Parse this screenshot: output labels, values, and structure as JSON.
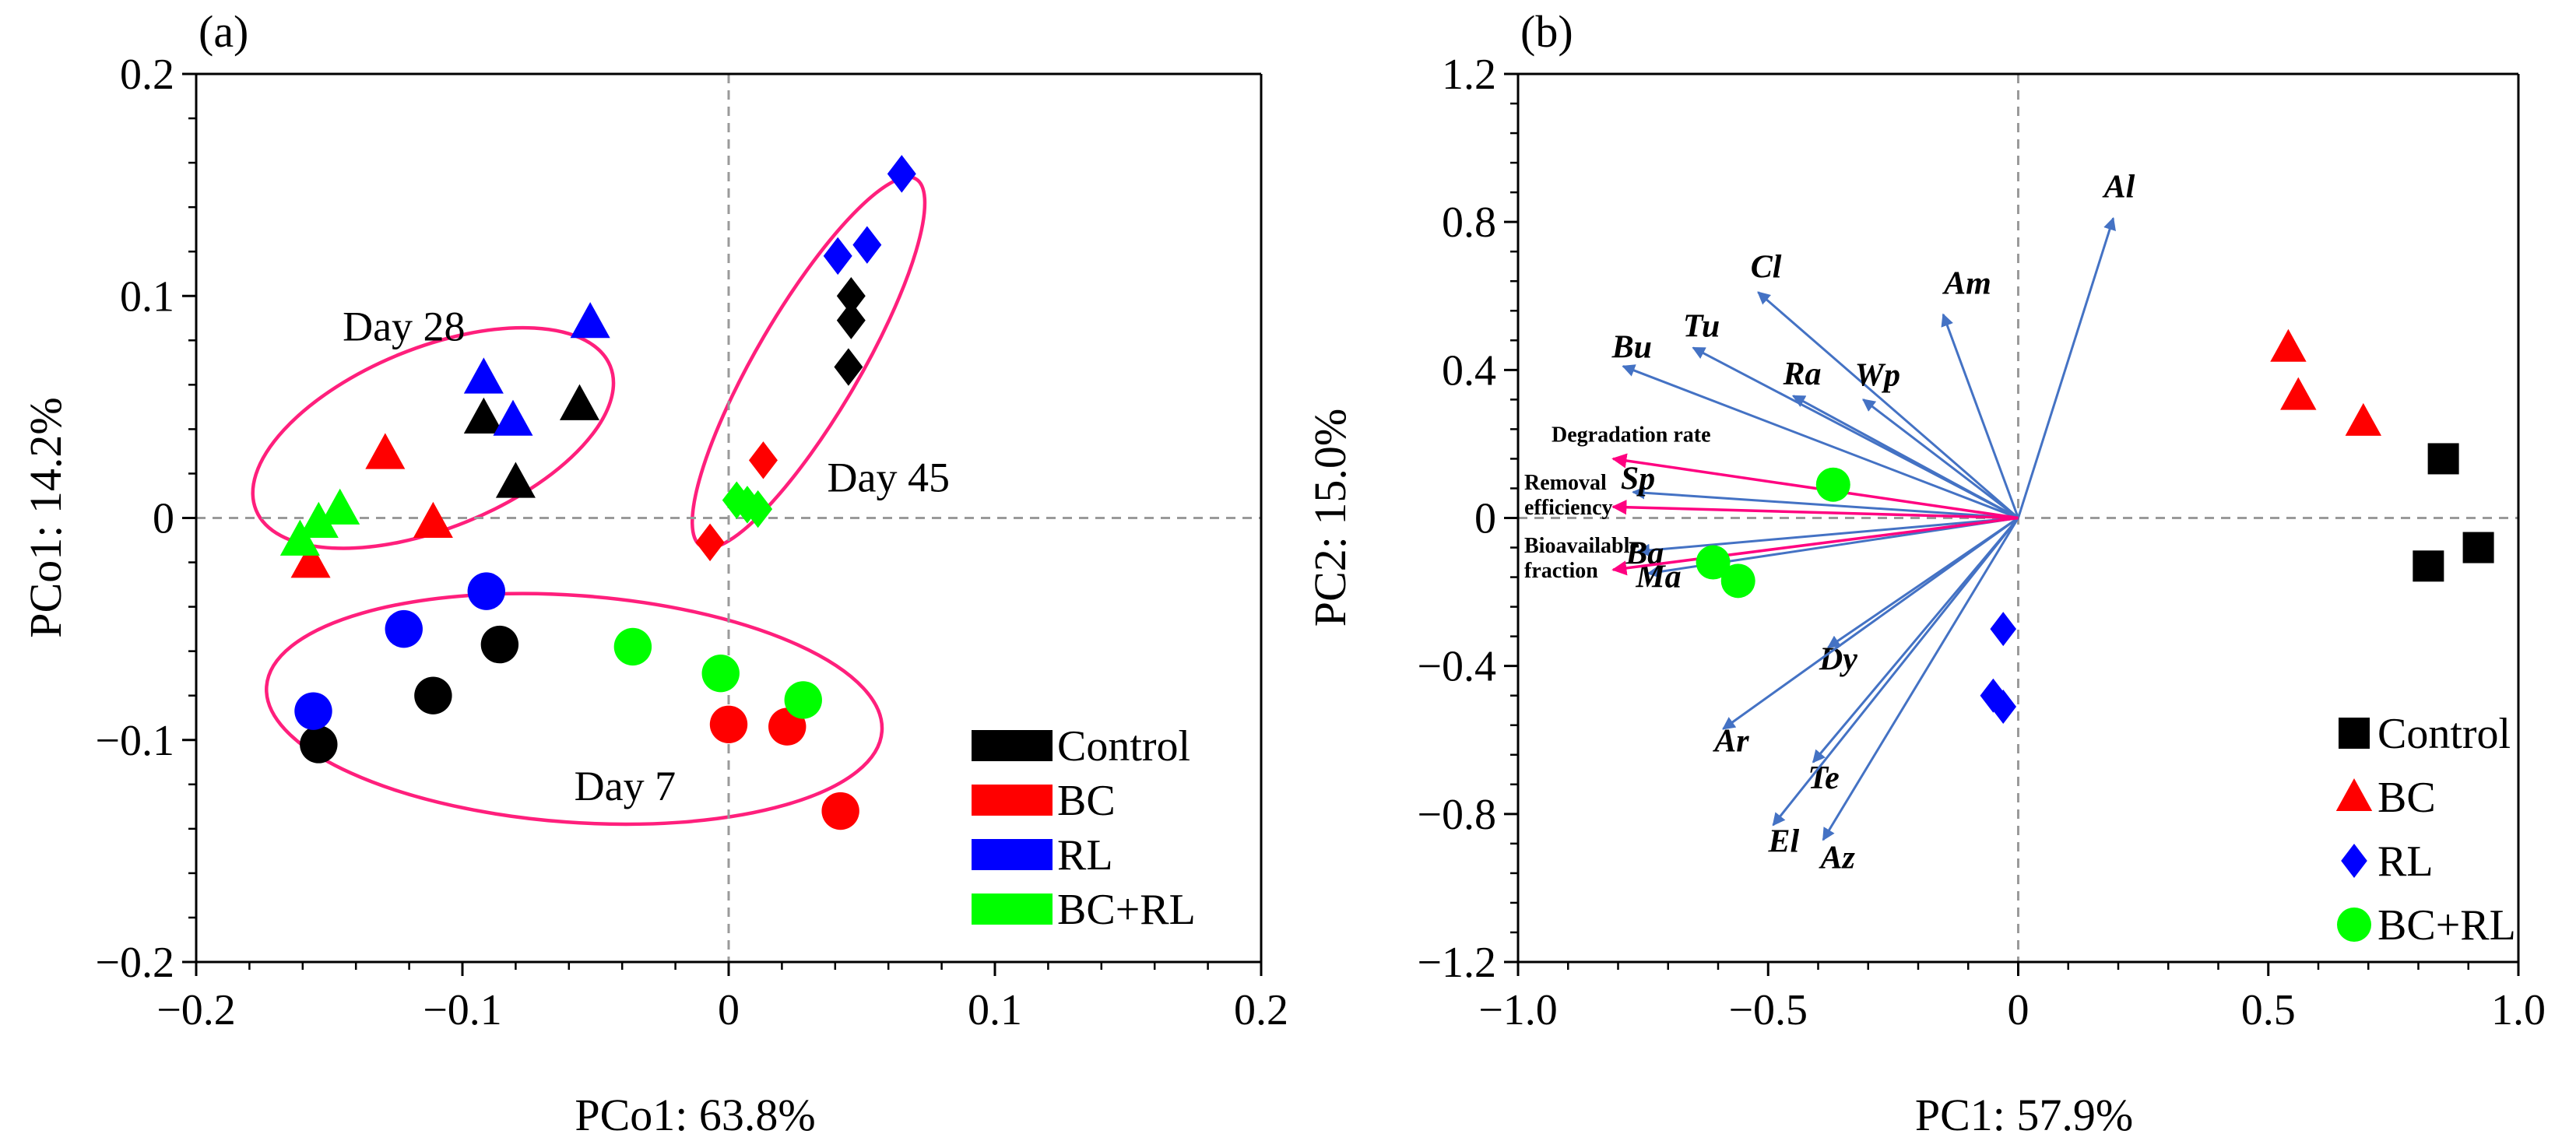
{
  "chart_data": [
    {
      "type": "scatter",
      "panel_label": "(a)",
      "xlabel": "PCo1: 63.8%",
      "ylabel": "PCo1: 14.2%",
      "xlim": [
        -0.2,
        0.2
      ],
      "ylim": [
        -0.2,
        0.2
      ],
      "xticks": [
        -0.2,
        -0.1,
        0,
        0.1,
        0.2
      ],
      "yticks": [
        -0.2,
        -0.1,
        0,
        0.1,
        0.2
      ],
      "xtick_labels": [
        "−0.2",
        "−0.1",
        "0",
        "0.1",
        "0.2"
      ],
      "ytick_labels": [
        "−0.2",
        "−0.1",
        "0",
        "0.1",
        "0.2"
      ],
      "reference_lines": "dashed lines at x=0 and y=0",
      "legend": {
        "position": "bottom-right",
        "entries": [
          "Control",
          "BC",
          "RL",
          "BC+RL"
        ]
      },
      "markers_by_day": {
        "Day 7": "circle",
        "Day 28": "triangle",
        "Day 45": "diamond"
      },
      "series": [
        {
          "name": "Control",
          "color": "#000000",
          "points": [
            {
              "day": "Day 7",
              "x": -0.154,
              "y": -0.102
            },
            {
              "day": "Day 7",
              "x": -0.111,
              "y": -0.08
            },
            {
              "day": "Day 7",
              "x": -0.086,
              "y": -0.057
            },
            {
              "day": "Day 28",
              "x": -0.092,
              "y": 0.045
            },
            {
              "day": "Day 28",
              "x": -0.08,
              "y": 0.016
            },
            {
              "day": "Day 28",
              "x": -0.056,
              "y": 0.051
            },
            {
              "day": "Day 45",
              "x": 0.046,
              "y": 0.1
            },
            {
              "day": "Day 45",
              "x": 0.046,
              "y": 0.089
            },
            {
              "day": "Day 45",
              "x": 0.045,
              "y": 0.068
            }
          ]
        },
        {
          "name": "BC",
          "color": "#ff0000",
          "points": [
            {
              "day": "Day 7",
              "x": 0.0,
              "y": -0.093
            },
            {
              "day": "Day 7",
              "x": 0.022,
              "y": -0.094
            },
            {
              "day": "Day 7",
              "x": 0.042,
              "y": -0.132
            },
            {
              "day": "Day 28",
              "x": -0.129,
              "y": 0.029
            },
            {
              "day": "Day 28",
              "x": -0.111,
              "y": -0.002
            },
            {
              "day": "Day 28",
              "x": -0.157,
              "y": -0.02
            },
            {
              "day": "Day 45",
              "x": 0.013,
              "y": 0.026
            },
            {
              "day": "Day 45",
              "x": -0.007,
              "y": -0.011
            }
          ]
        },
        {
          "name": "RL",
          "color": "#0000ff",
          "points": [
            {
              "day": "Day 7",
              "x": -0.156,
              "y": -0.087
            },
            {
              "day": "Day 7",
              "x": -0.122,
              "y": -0.05
            },
            {
              "day": "Day 7",
              "x": -0.091,
              "y": -0.033
            },
            {
              "day": "Day 28",
              "x": -0.092,
              "y": 0.063
            },
            {
              "day": "Day 28",
              "x": -0.081,
              "y": 0.044
            },
            {
              "day": "Day 28",
              "x": -0.052,
              "y": 0.088
            },
            {
              "day": "Day 45",
              "x": 0.041,
              "y": 0.118
            },
            {
              "day": "Day 45",
              "x": 0.052,
              "y": 0.123
            },
            {
              "day": "Day 45",
              "x": 0.065,
              "y": 0.155
            }
          ]
        },
        {
          "name": "BC+RL",
          "color": "#00ff00",
          "points": [
            {
              "day": "Day 7",
              "x": -0.036,
              "y": -0.058
            },
            {
              "day": "Day 7",
              "x": -0.003,
              "y": -0.07
            },
            {
              "day": "Day 7",
              "x": 0.028,
              "y": -0.082
            },
            {
              "day": "Day 28",
              "x": -0.161,
              "y": -0.01
            },
            {
              "day": "Day 28",
              "x": -0.154,
              "y": -0.002
            },
            {
              "day": "Day 28",
              "x": -0.146,
              "y": 0.004
            },
            {
              "day": "Day 45",
              "x": 0.003,
              "y": 0.008
            },
            {
              "day": "Day 45",
              "x": 0.007,
              "y": 0.006
            },
            {
              "day": "Day 45",
              "x": 0.011,
              "y": 0.004
            }
          ]
        }
      ],
      "group_annotations": [
        {
          "label": "Day 28",
          "label_at": [
            -0.145,
            0.08
          ],
          "ellipse": {
            "cx": -0.111,
            "cy": 0.036,
            "rx": 0.074,
            "ry": 0.039,
            "angle_deg": 26
          }
        },
        {
          "label": "Day 45",
          "label_at": [
            0.037,
            0.012
          ],
          "ellipse": {
            "cx": 0.03,
            "cy": 0.07,
            "rx": 0.092,
            "ry": 0.02,
            "angle_deg": 64
          }
        },
        {
          "label": "Day 7",
          "label_at": [
            -0.058,
            -0.127
          ],
          "ellipse": {
            "cx": -0.058,
            "cy": -0.086,
            "rx": 0.116,
            "ry": 0.051,
            "angle_deg": -5
          }
        }
      ]
    },
    {
      "type": "biplot",
      "panel_label": "(b)",
      "xlabel": "PC1: 57.9%",
      "ylabel": "PC2: 15.0%",
      "xlim": [
        -1.0,
        1.0
      ],
      "ylim": [
        -1.2,
        1.2
      ],
      "xticks": [
        -1.0,
        -0.5,
        0,
        0.5,
        1.0
      ],
      "yticks": [
        -1.2,
        -0.8,
        -0.4,
        0,
        0.4,
        0.8,
        1.2
      ],
      "xtick_labels": [
        "−1.0",
        "−0.5",
        "0",
        "0.5",
        "1.0"
      ],
      "ytick_labels": [
        "−1.2",
        "−0.8",
        "−0.4",
        "0",
        "0.4",
        "0.8",
        "1.2"
      ],
      "reference_lines": "dashed lines at x=0 and y=0",
      "legend": {
        "position": "bottom-right",
        "entries": [
          "Control",
          "BC",
          "RL",
          "BC+RL"
        ]
      },
      "series": [
        {
          "name": "Control",
          "color": "#000000",
          "marker": "square",
          "points": [
            {
              "x": 0.85,
              "y": 0.16
            },
            {
              "x": 0.82,
              "y": -0.13
            },
            {
              "x": 0.92,
              "y": -0.08
            }
          ]
        },
        {
          "name": "BC",
          "color": "#ff0000",
          "marker": "triangle",
          "points": [
            {
              "x": 0.54,
              "y": 0.46
            },
            {
              "x": 0.56,
              "y": 0.33
            },
            {
              "x": 0.69,
              "y": 0.26
            }
          ]
        },
        {
          "name": "RL",
          "color": "#0000ff",
          "marker": "diamond",
          "points": [
            {
              "x": -0.03,
              "y": -0.3
            },
            {
              "x": -0.05,
              "y": -0.48
            },
            {
              "x": -0.03,
              "y": -0.51
            }
          ]
        },
        {
          "name": "BC+RL",
          "color": "#00ff00",
          "marker": "circle",
          "points": [
            {
              "x": -0.37,
              "y": 0.09
            },
            {
              "x": -0.61,
              "y": -0.12
            },
            {
              "x": -0.56,
              "y": -0.17
            }
          ]
        }
      ],
      "loadings": [
        {
          "label": "Al",
          "x": 0.19,
          "y": 0.81
        },
        {
          "label": "Cl",
          "x": -0.52,
          "y": 0.61
        },
        {
          "label": "Tu",
          "x": -0.65,
          "y": 0.46
        },
        {
          "label": "Bu",
          "x": -0.79,
          "y": 0.41
        },
        {
          "label": "Ra",
          "x": -0.45,
          "y": 0.33
        },
        {
          "label": "Wp",
          "x": -0.31,
          "y": 0.32
        },
        {
          "label": "Am",
          "x": -0.15,
          "y": 0.55
        },
        {
          "label": "Sp",
          "x": -0.77,
          "y": 0.07
        },
        {
          "label": "Ba",
          "x": -0.76,
          "y": -0.09
        },
        {
          "label": "Ma",
          "x": -0.74,
          "y": -0.15
        },
        {
          "label": "Dy",
          "x": -0.38,
          "y": -0.35
        },
        {
          "label": "Ar",
          "x": -0.59,
          "y": -0.57
        },
        {
          "label": "Te",
          "x": -0.41,
          "y": -0.66
        },
        {
          "label": "El",
          "x": -0.49,
          "y": -0.83
        },
        {
          "label": "Az",
          "x": -0.39,
          "y": -0.87
        }
      ],
      "response_vectors": [
        {
          "label": "Degradation rate",
          "x": -0.81,
          "y": 0.16
        },
        {
          "label": "Removal efficiency",
          "x": -0.81,
          "y": 0.03
        },
        {
          "label": "Bioavailable fraction",
          "x": -0.81,
          "y": -0.14
        }
      ],
      "loading_color": "#4472c4",
      "response_color": "#ff0080"
    }
  ]
}
